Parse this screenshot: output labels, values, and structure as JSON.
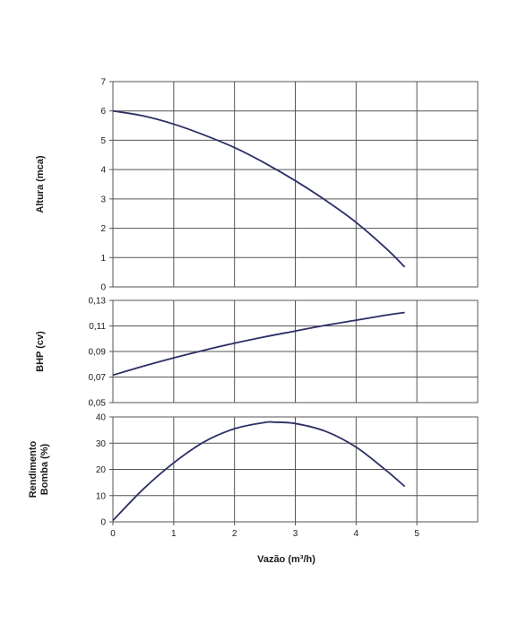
{
  "chart_data": [
    {
      "type": "line",
      "ylabel": "Altura (mca)",
      "xlim": [
        0,
        6
      ],
      "ylim": [
        0,
        7
      ],
      "x_ticks": [],
      "y_ticks": [
        "0",
        "1",
        "2",
        "3",
        "4",
        "5",
        "6",
        "7"
      ],
      "grid": true,
      "series": [
        {
          "x": [
            0,
            0.5,
            1,
            1.5,
            2,
            2.5,
            3,
            3.5,
            4,
            4.5,
            4.8
          ],
          "y": [
            6.0,
            5.83,
            5.55,
            5.18,
            4.75,
            4.22,
            3.62,
            2.95,
            2.2,
            1.3,
            0.68
          ]
        }
      ],
      "color": "#2b2f66"
    },
    {
      "type": "line",
      "ylabel": "BHP (cv)",
      "xlim": [
        0,
        6
      ],
      "ylim": [
        0.05,
        0.13
      ],
      "x_ticks": [],
      "y_ticks": [
        "0,05",
        "0,07",
        "0,09",
        "0,11",
        "0,13"
      ],
      "grid": true,
      "series": [
        {
          "x": [
            0,
            0.5,
            1,
            1.5,
            2,
            2.5,
            3,
            3.5,
            4,
            4.5,
            4.8
          ],
          "y": [
            0.0715,
            0.0785,
            0.085,
            0.091,
            0.0965,
            0.1015,
            0.106,
            0.1105,
            0.1145,
            0.1185,
            0.1205
          ]
        }
      ],
      "color": "#2b2f66"
    },
    {
      "type": "line",
      "ylabel": "Rendimento Bomba (%)",
      "xlabel": "Vazão (m³/h)",
      "xlim": [
        0,
        6
      ],
      "ylim": [
        0,
        40
      ],
      "x_ticks": [
        "0",
        "1",
        "2",
        "3",
        "4",
        "5"
      ],
      "y_ticks": [
        "0",
        "10",
        "20",
        "30",
        "40"
      ],
      "grid": true,
      "series": [
        {
          "x": [
            0,
            0.5,
            1,
            1.5,
            2,
            2.5,
            2.65,
            3,
            3.5,
            4,
            4.5,
            4.8
          ],
          "y": [
            0.5,
            12.5,
            22.5,
            30.5,
            35.5,
            37.9,
            38.0,
            37.5,
            34.5,
            28.5,
            19.5,
            13.5
          ]
        }
      ],
      "color": "#2b2f66"
    }
  ]
}
